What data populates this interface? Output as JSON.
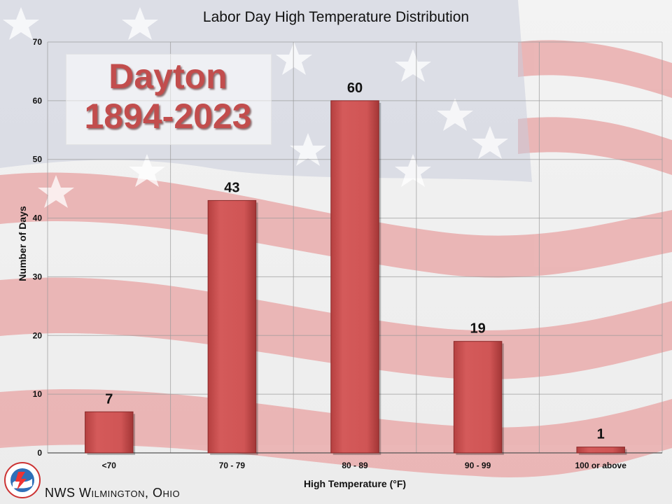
{
  "chart_data": {
    "type": "bar",
    "title": "Labor Day High Temperature Distribution",
    "xlabel": "High Temperature (°F)",
    "ylabel": "Number of Days",
    "categories": [
      "<70",
      "70 - 79",
      "80 - 89",
      "90 - 99",
      "100 or above"
    ],
    "values": [
      7,
      43,
      60,
      19,
      1
    ],
    "ylim": [
      0,
      70
    ],
    "yticks": [
      0,
      10,
      20,
      30,
      40,
      50,
      60,
      70
    ],
    "grid": true,
    "bar_color": "#d05555"
  },
  "annotation": {
    "line1": "Dayton",
    "line2": "1894-2023"
  },
  "footer": {
    "text": "NWS Wilmington, Ohio"
  },
  "colors": {
    "flag_red": "#e9a3a3",
    "flag_blue": "#b8bdd0",
    "bar": "#d05555",
    "bar_edge": "#8a2a2a",
    "city_text": "#c24d4d"
  },
  "icons": {
    "logo": "nws-logo-icon"
  }
}
